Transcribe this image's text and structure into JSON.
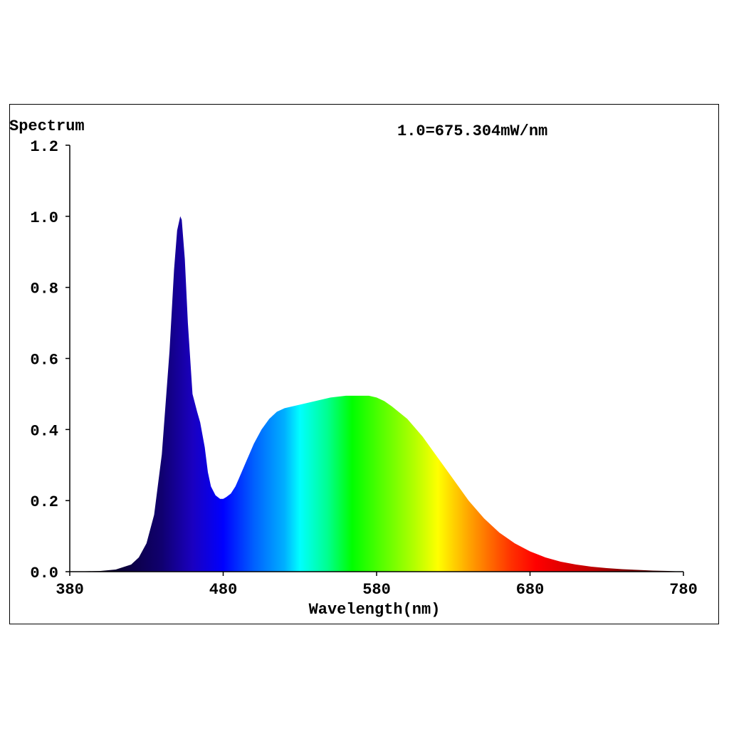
{
  "chart_data": {
    "type": "area",
    "title": "Spectrum",
    "annotation": "1.0=675.304mW/nm",
    "xlabel": "Wavelength(nm)",
    "ylabel": "",
    "xlim": [
      380,
      780
    ],
    "ylim": [
      0,
      1.2
    ],
    "x_ticks": [
      "380",
      "480",
      "580",
      "680",
      "780"
    ],
    "y_ticks": [
      "0.0",
      "0.2",
      "0.4",
      "0.6",
      "0.8",
      "1.0",
      "1.2"
    ],
    "fill": "visible-spectrum gradient",
    "series": [
      {
        "x": [
          380,
          390,
          400,
          410,
          420,
          425,
          430,
          435,
          440,
          445,
          448,
          450,
          452,
          453,
          455,
          457,
          460,
          463,
          465,
          468,
          470,
          472,
          475,
          478,
          480,
          482,
          485,
          488,
          490,
          495,
          500,
          505,
          510,
          515,
          520,
          525,
          530,
          540,
          550,
          560,
          570,
          575,
          580,
          585,
          590,
          600,
          610,
          620,
          630,
          640,
          650,
          660,
          670,
          680,
          690,
          700,
          710,
          720,
          730,
          740,
          750,
          760,
          770,
          780
        ],
        "y": [
          0.0,
          0.001,
          0.002,
          0.006,
          0.02,
          0.04,
          0.08,
          0.16,
          0.33,
          0.62,
          0.85,
          0.96,
          1.0,
          0.99,
          0.88,
          0.7,
          0.5,
          0.45,
          0.42,
          0.35,
          0.28,
          0.24,
          0.215,
          0.205,
          0.205,
          0.21,
          0.22,
          0.24,
          0.26,
          0.31,
          0.36,
          0.4,
          0.43,
          0.45,
          0.46,
          0.465,
          0.47,
          0.48,
          0.49,
          0.495,
          0.495,
          0.495,
          0.49,
          0.48,
          0.465,
          0.43,
          0.38,
          0.32,
          0.26,
          0.2,
          0.15,
          0.11,
          0.08,
          0.057,
          0.04,
          0.028,
          0.02,
          0.014,
          0.01,
          0.007,
          0.005,
          0.003,
          0.002,
          0.0
        ]
      }
    ]
  }
}
